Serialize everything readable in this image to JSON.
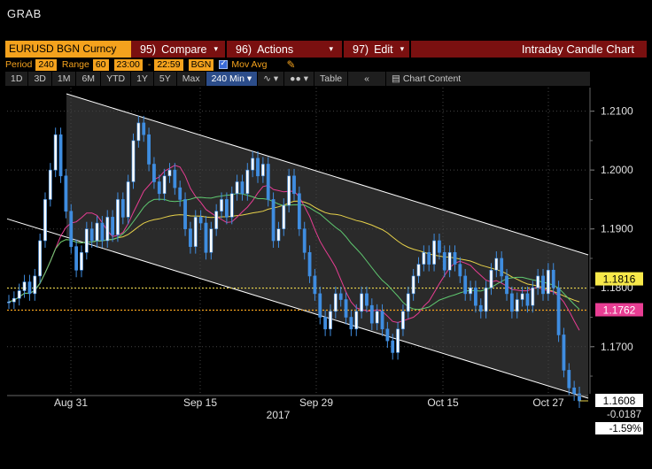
{
  "window": {
    "title": "GRAB"
  },
  "cmdbar": {
    "ticker": "EURUSD BGN Curncy",
    "compare": {
      "num": "95)",
      "label": "Compare"
    },
    "actions": {
      "num": "96)",
      "label": "Actions"
    },
    "edit": {
      "num": "97)",
      "label": "Edit"
    },
    "chart_title": "Intraday Candle Chart"
  },
  "params": {
    "period_label": "Period",
    "period": "240",
    "range_label": "Range",
    "range": "60",
    "from": "23:00",
    "dash": "-",
    "to": "22:59",
    "source": "BGN",
    "mov_avg_label": "Mov Avg"
  },
  "toolbar": {
    "buttons": [
      "1D",
      "3D",
      "1M",
      "6M",
      "YTD",
      "1Y",
      "5Y",
      "Max"
    ],
    "interval": "240 Min",
    "table_label": "Table",
    "collapse_icon": "double-chevron-left-icon",
    "chart_content_label": "Chart Content"
  },
  "chart_data": {
    "type": "line",
    "y_ticks": [
      "1.2100",
      "1.2000",
      "1.1900",
      "1.1800",
      "1.1700"
    ],
    "x_ticks": [
      "Aug 31",
      "Sep 15",
      "Sep 29",
      "Oct 15",
      "Oct 27"
    ],
    "year_label": "2017",
    "ylim": [
      1.162,
      1.214
    ],
    "price_labels": {
      "ma_upper": "1.1816",
      "ma_lower": "1.1762",
      "last": "1.1608",
      "change": "-0.0187",
      "pct_change": "-1.59%"
    },
    "colors": {
      "price": "#3f8de0",
      "ma_yellow": "#e8d24a",
      "ma_pink": "#e83d93",
      "ma_green": "#5fc870",
      "channel": "#ffffff"
    },
    "series": [
      {
        "values": [
          1.1776,
          1.1782,
          1.1795,
          1.181,
          1.179,
          1.182,
          1.188,
          1.195,
          1.2,
          1.206,
          1.199,
          1.193,
          1.187,
          1.183,
          1.186,
          1.19,
          1.188,
          1.191,
          1.188,
          1.192,
          1.189,
          1.195,
          1.192,
          1.198,
          1.205,
          1.208,
          1.206,
          1.201,
          1.198,
          1.196,
          1.199,
          1.2,
          1.197,
          1.195,
          1.19,
          1.187,
          1.192,
          1.191,
          1.186,
          1.19,
          1.193,
          1.195,
          1.192,
          1.196,
          1.198,
          1.196,
          1.2,
          1.202,
          1.199,
          1.201,
          1.195,
          1.188,
          1.19,
          1.194,
          1.199,
          1.196,
          1.19,
          1.186,
          1.182,
          1.179,
          1.175,
          1.173,
          1.176,
          1.179,
          1.178,
          1.175,
          1.173,
          1.176,
          1.179,
          1.177,
          1.174,
          1.176,
          1.173,
          1.171,
          1.169,
          1.173,
          1.176,
          1.179,
          1.182,
          1.184,
          1.186,
          1.184,
          1.188,
          1.186,
          1.183,
          1.186,
          1.184,
          1.182,
          1.179,
          1.18,
          1.177,
          1.176,
          1.18,
          1.183,
          1.185,
          1.182,
          1.179,
          1.176,
          1.178,
          1.179,
          1.177,
          1.18,
          1.182,
          1.179,
          1.183,
          1.18,
          1.172,
          1.166,
          1.163,
          1.162,
          1.1608
        ]
      }
    ]
  }
}
